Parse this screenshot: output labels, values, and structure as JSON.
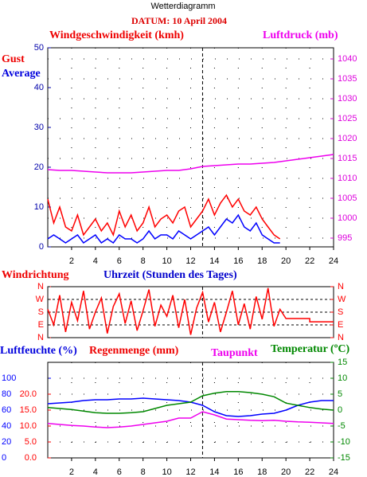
{
  "chart_data": [
    {
      "type": "line",
      "title": "Wetterdiagramm",
      "subtitle": "DATUM: 10 April 2004",
      "ylabel": "Windgeschwindigkeit (kmh)",
      "xlim": [
        0,
        24
      ],
      "xticks": [
        2,
        4,
        6,
        8,
        10,
        12,
        14,
        16,
        18,
        20,
        22,
        24
      ],
      "ylim": [
        0,
        50
      ],
      "yticks": [
        0,
        10,
        20,
        30,
        40,
        50
      ],
      "ytick_color": "#0000aa",
      "y2lim": [
        992.8,
        1042.8
      ],
      "y2ticks": [
        995,
        1000,
        1005,
        1010,
        1015,
        1020,
        1025,
        1030,
        1035,
        1040
      ],
      "y2tick_color": "#dd00dd",
      "grid": "y2",
      "vline": 13,
      "series": [
        {
          "name": "Gust",
          "color": "#ff0000",
          "x": [
            0,
            0.5,
            1,
            1.5,
            2,
            2.5,
            3,
            3.5,
            4,
            4.5,
            5,
            5.5,
            6,
            6.5,
            7,
            7.5,
            8,
            8.5,
            9,
            9.5,
            10,
            10.5,
            11,
            11.5,
            12,
            12.5,
            13,
            13.5,
            14,
            14.5,
            15,
            15.5,
            16,
            16.5,
            17,
            17.5,
            18,
            18.5,
            19,
            19.5
          ],
          "values": [
            12,
            6,
            10,
            5,
            4,
            8,
            3,
            5,
            7,
            4,
            6,
            3,
            9,
            5,
            8,
            4,
            6,
            10,
            5,
            7,
            8,
            6,
            9,
            10,
            5,
            7,
            9,
            12,
            8,
            11,
            13,
            10,
            12,
            9,
            8,
            10,
            7,
            5,
            3,
            2
          ]
        },
        {
          "name": "Average",
          "color": "#0000ff",
          "x": [
            0,
            0.5,
            1,
            1.5,
            2,
            2.5,
            3,
            3.5,
            4,
            4.5,
            5,
            5.5,
            6,
            6.5,
            7,
            7.5,
            8,
            8.5,
            9,
            9.5,
            10,
            10.5,
            11,
            11.5,
            12,
            12.5,
            13,
            13.5,
            14,
            14.5,
            15,
            15.5,
            16,
            16.5,
            17,
            17.5,
            18,
            18.5,
            19,
            19.5
          ],
          "values": [
            2,
            3,
            2,
            1,
            2,
            3,
            1,
            2,
            3,
            1,
            2,
            1,
            3,
            2,
            2,
            1,
            2,
            4,
            2,
            3,
            3,
            2,
            4,
            3,
            2,
            3,
            4,
            5,
            3,
            5,
            7,
            6,
            8,
            5,
            4,
            6,
            3,
            2,
            1,
            1
          ]
        },
        {
          "name": "Luftdruck (mb)",
          "color": "#ee00ee",
          "axis": "y2",
          "x": [
            0,
            1,
            2,
            3,
            4,
            5,
            6,
            7,
            8,
            9,
            10,
            11,
            12,
            13,
            14,
            15,
            16,
            17,
            18,
            19,
            20,
            21,
            22,
            23,
            24
          ],
          "values": [
            1012.2,
            1012,
            1012,
            1011.8,
            1011.6,
            1011.4,
            1011.4,
            1011.4,
            1011.6,
            1011.8,
            1012,
            1012,
            1012.4,
            1013,
            1013.2,
            1013.4,
            1013.6,
            1013.6,
            1013.8,
            1014,
            1014.4,
            1014.8,
            1015.2,
            1015.6,
            1016
          ]
        }
      ]
    },
    {
      "type": "line",
      "xlabel": "Uhrzeit (Stunden des Tages)",
      "xlim": [
        0,
        24
      ],
      "ylim": [
        0,
        360
      ],
      "yticks": [
        {
          "value": 360,
          "label": "N"
        },
        {
          "value": 270,
          "label": "W"
        },
        {
          "value": 180,
          "label": "S"
        },
        {
          "value": 90,
          "label": "E"
        },
        {
          "value": 0,
          "label": "N"
        }
      ],
      "ytick_color": "#ff0000",
      "y2ticks": [
        {
          "value": 360,
          "label": "N"
        },
        {
          "value": 270,
          "label": "W"
        },
        {
          "value": 180,
          "label": "S"
        },
        {
          "value": 90,
          "label": "E"
        },
        {
          "value": 0,
          "label": "N"
        }
      ],
      "y2lim": [
        0,
        360
      ],
      "y2tick_color": "#ff0000",
      "grid": "y",
      "vline": 13,
      "series": [
        {
          "name": "Windrichtung",
          "color": "#ff0000",
          "x": [
            0,
            0.5,
            1,
            1.5,
            2,
            2.5,
            3,
            3.5,
            4,
            4.5,
            5,
            5.5,
            6,
            6.5,
            7,
            7.5,
            8,
            8.5,
            9,
            9.5,
            10,
            10.5,
            11,
            11.5,
            12,
            12.5,
            13,
            13.5,
            14,
            14.5,
            15,
            15.5,
            16,
            16.5,
            17,
            17.5,
            18,
            18.5,
            19,
            19.5,
            20,
            22,
            22,
            24
          ],
          "values": [
            200,
            90,
            300,
            40,
            250,
            120,
            330,
            60,
            180,
            280,
            30,
            220,
            310,
            100,
            260,
            50,
            190,
            340,
            80,
            230,
            150,
            300,
            70,
            270,
            20,
            210,
            320,
            110,
            250,
            40,
            180,
            330,
            90,
            240,
            60,
            290,
            130,
            350,
            80,
            200,
            135,
            135,
            112,
            112
          ]
        }
      ]
    },
    {
      "type": "line",
      "y3label": "Regenmenge (mm)",
      "xlim": [
        0,
        24
      ],
      "xticks": [
        2,
        4,
        6,
        8,
        10,
        12,
        14,
        16,
        18,
        20,
        22,
        24
      ],
      "ylim": [
        0,
        120
      ],
      "yticks": [
        0,
        20,
        40,
        60,
        80,
        100
      ],
      "ytick_color": "#0000ff",
      "y3lim": [
        0,
        30
      ],
      "y3ticks": [
        {
          "value": 0,
          "label": "0.0"
        },
        {
          "value": 5,
          "label": "5.0"
        },
        {
          "value": 10,
          "label": "10.0"
        },
        {
          "value": 15,
          "label": "15.0"
        },
        {
          "value": 20,
          "label": "20.0"
        }
      ],
      "y3tick_color": "#ff0000",
      "y2lim": [
        -15,
        15
      ],
      "y2ticks": [
        -15,
        -10,
        -5,
        0,
        5,
        10,
        15
      ],
      "y2tick_color": "#008800",
      "grid": "y2",
      "vline": 13,
      "series": [
        {
          "name": "Luftfeuchte (%)",
          "color": "#0000ff",
          "x": [
            0,
            1,
            2,
            3,
            4,
            5,
            6,
            7,
            8,
            9,
            10,
            11,
            12,
            13,
            14,
            15,
            16,
            17,
            18,
            19,
            20,
            21,
            22,
            23,
            24
          ],
          "values": [
            68,
            69,
            70,
            72,
            73,
            73,
            74,
            74,
            75,
            74,
            73,
            72,
            70,
            66,
            58,
            53,
            52,
            53,
            55,
            56,
            60,
            66,
            70,
            72,
            72
          ]
        },
        {
          "name": "Taupunkt",
          "color": "#ee00ee",
          "axis": "y2",
          "x": [
            0,
            1,
            2,
            3,
            4,
            5,
            6,
            7,
            8,
            9,
            10,
            11,
            12,
            13,
            14,
            15,
            16,
            17,
            18,
            19,
            20,
            21,
            22,
            23,
            24
          ],
          "values": [
            -4.2,
            -4.5,
            -4.8,
            -5,
            -5.3,
            -5.5,
            -5.3,
            -5,
            -4.5,
            -4,
            -3.5,
            -2.5,
            -2.5,
            -0.5,
            -1.5,
            -2.8,
            -3,
            -3.2,
            -3.3,
            -3.2,
            -3.5,
            -3.7,
            -3.8,
            -4,
            -4.2
          ]
        },
        {
          "name": "Temperatur (ºC)",
          "color": "#008800",
          "axis": "y2",
          "x": [
            0,
            1,
            2,
            3,
            4,
            5,
            6,
            7,
            8,
            9,
            10,
            11,
            12,
            13,
            14,
            15,
            16,
            17,
            18,
            19,
            20,
            21,
            22,
            23,
            24
          ],
          "values": [
            0.8,
            0.5,
            0.2,
            -0.3,
            -0.8,
            -1,
            -1,
            -0.8,
            -0.5,
            0.5,
            1.5,
            2,
            2.5,
            4.5,
            5.3,
            5.8,
            5.8,
            5.5,
            5,
            4.2,
            2.2,
            1.5,
            0.8,
            0.3,
            0
          ]
        }
      ]
    }
  ]
}
